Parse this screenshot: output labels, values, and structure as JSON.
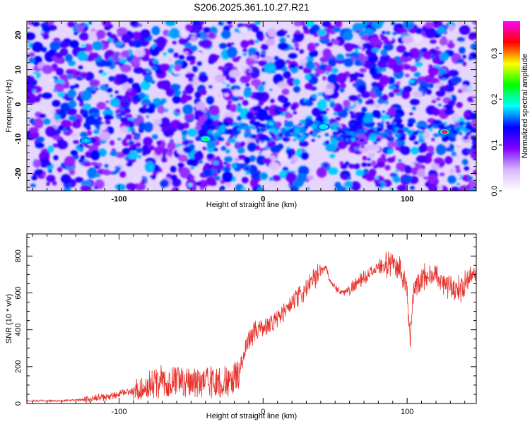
{
  "title": "S206.2025.361.10.27.R21",
  "chart_data": [
    {
      "type": "heatmap",
      "xlabel": "Height of straight line (km)",
      "ylabel": "Frequency (Hz)",
      "xlim": [
        -164,
        148
      ],
      "ylim": [
        -25,
        24
      ],
      "xticks": [
        -100,
        0,
        100
      ],
      "yticks": [
        -20,
        -10,
        0,
        10,
        20
      ],
      "colorbar": {
        "label": "Normalized spectral amplitude",
        "range": [
          0.0,
          0.37
        ],
        "ticks": [
          0.0,
          0.1,
          0.2,
          0.3
        ],
        "colors": [
          "#ffffff",
          "#d8b8ff",
          "#8000ff",
          "#0000ff",
          "#00ffff",
          "#00ff00",
          "#ffff00",
          "#ff0000",
          "#ff00ff"
        ]
      },
      "band": {
        "freq_center_hz": -8,
        "start_km": -40,
        "end_km": 148
      },
      "hotspots": [
        {
          "x": -123,
          "y": -10.5,
          "value": 0.17
        },
        {
          "x": -40,
          "y": -10,
          "value": 0.2
        },
        {
          "x": 42,
          "y": -6.5,
          "value": 0.18
        },
        {
          "x": 126,
          "y": -8,
          "value": 0.34
        }
      ]
    },
    {
      "type": "line",
      "xlabel": "Height of straight line (km)",
      "ylabel": "SNR (10 * v/v)",
      "xlim": [
        -164,
        148
      ],
      "ylim": [
        0,
        920
      ],
      "xticks": [
        -100,
        0,
        100
      ],
      "yticks": [
        0,
        200,
        400,
        600,
        800
      ],
      "series": [
        {
          "color": "#e8332d",
          "keypoints": [
            [
              -164,
              15
            ],
            [
              -140,
              15
            ],
            [
              -120,
              22
            ],
            [
              -105,
              40
            ],
            [
              -90,
              70
            ],
            [
              -80,
              110
            ],
            [
              -70,
              150
            ],
            [
              -55,
              145
            ],
            [
              -40,
              150
            ],
            [
              -25,
              150
            ],
            [
              -16,
              180
            ],
            [
              -10,
              360
            ],
            [
              -5,
              390
            ],
            [
              0,
              410
            ],
            [
              10,
              460
            ],
            [
              20,
              540
            ],
            [
              30,
              620
            ],
            [
              40,
              720
            ],
            [
              44,
              740
            ],
            [
              46,
              670
            ],
            [
              50,
              630
            ],
            [
              55,
              600
            ],
            [
              60,
              620
            ],
            [
              70,
              680
            ],
            [
              80,
              740
            ],
            [
              90,
              760
            ],
            [
              95,
              740
            ],
            [
              100,
              600
            ],
            [
              102,
              340
            ],
            [
              105,
              640
            ],
            [
              110,
              680
            ],
            [
              120,
              700
            ],
            [
              125,
              660
            ],
            [
              130,
              640
            ],
            [
              135,
              620
            ],
            [
              140,
              640
            ],
            [
              145,
              700
            ],
            [
              148,
              720
            ]
          ]
        }
      ]
    }
  ]
}
